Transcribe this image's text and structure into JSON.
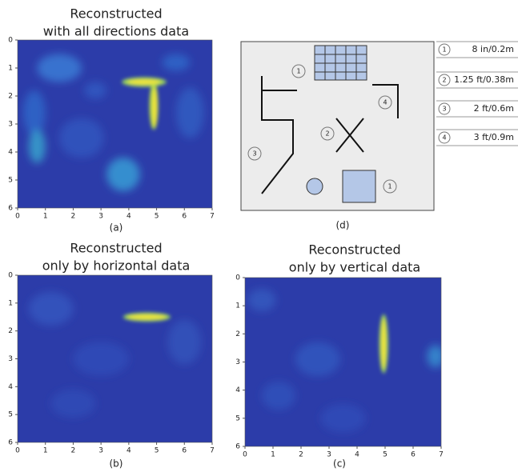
{
  "chart_data": [
    {
      "type": "heatmap",
      "title_lines": [
        "Reconstructed",
        "with all directions data"
      ],
      "caption": "(a)",
      "xlim": [
        0,
        7
      ],
      "ylim": [
        0,
        6
      ],
      "xticks": [
        0,
        1,
        2,
        3,
        4,
        5,
        6,
        7
      ],
      "yticks": [
        0,
        1,
        2,
        3,
        4,
        5,
        6
      ]
    },
    {
      "type": "heatmap",
      "title_lines": [
        "Reconstructed",
        "only by horizontal data"
      ],
      "caption": "(b)",
      "xlim": [
        0,
        7
      ],
      "ylim": [
        0,
        6
      ],
      "xticks": [
        0,
        1,
        2,
        3,
        4,
        5,
        6,
        7
      ],
      "yticks": [
        0,
        1,
        2,
        3,
        4,
        5,
        6
      ]
    },
    {
      "type": "heatmap",
      "title_lines": [
        "Reconstructed",
        "only by vertical data"
      ],
      "caption": "(c)",
      "xlim": [
        0,
        7
      ],
      "ylim": [
        0,
        6
      ],
      "xticks": [
        0,
        1,
        2,
        3,
        4,
        5,
        6,
        7
      ],
      "yticks": [
        0,
        1,
        2,
        3,
        4,
        5,
        6
      ]
    }
  ],
  "diagram": {
    "caption": "(d)",
    "markers": [
      "1",
      "1",
      "2",
      "3",
      "4"
    ],
    "legend": [
      {
        "key": "1",
        "text": "8 in/0.2m"
      },
      {
        "key": "2",
        "text": "1.25 ft/0.38m"
      },
      {
        "key": "3",
        "text": "2 ft/0.6m"
      },
      {
        "key": "4",
        "text": "3 ft/0.9m"
      }
    ]
  }
}
